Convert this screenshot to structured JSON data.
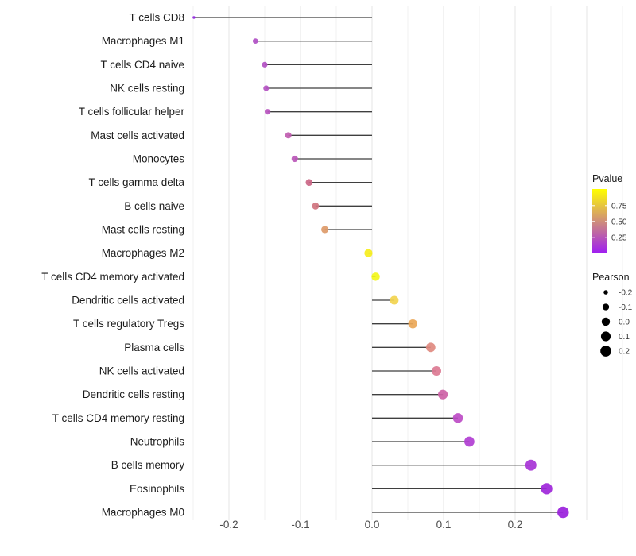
{
  "chart_data": {
    "type": "lollipop",
    "title": "",
    "xlabel": "",
    "ylabel": "",
    "grid": "on",
    "x_ticks": [
      "-0.2",
      "-0.1",
      "0.0",
      "0.1",
      "0.2"
    ],
    "x_tick_values": [
      -0.2,
      -0.1,
      0.0,
      0.1,
      0.2
    ],
    "xlim": [
      -0.253,
      0.358
    ],
    "categories": [
      "T cells CD8",
      "Macrophages M1",
      "T cells CD4 naive",
      "NK cells resting",
      "T cells follicular helper",
      "Mast cells activated",
      "Monocytes",
      "T cells gamma delta",
      "B cells naive",
      "Mast cells resting",
      "Macrophages M2",
      "T cells CD4 memory activated",
      "Dendritic cells activated",
      "T cells regulatory  Tregs",
      "Plasma cells",
      "NK cells activated",
      "Dendritic cells resting",
      "T cells CD4 memory resting",
      "Neutrophils",
      "B cells memory",
      "Eosinophils",
      "Macrophages M0"
    ],
    "series": [
      {
        "name": "Pearson",
        "values": [
          -0.249,
          -0.163,
          -0.15,
          -0.148,
          -0.146,
          -0.117,
          -0.108,
          -0.088,
          -0.079,
          -0.066,
          -0.005,
          0.005,
          0.031,
          0.057,
          0.082,
          0.09,
          0.099,
          0.12,
          0.136,
          0.222,
          0.244,
          0.267
        ]
      }
    ],
    "point_colors": [
      "#9327e0",
      "#b04fc4",
      "#b351c3",
      "#b452c2",
      "#b855bf",
      "#c05cb0",
      "#bb57b8",
      "#cb6685",
      "#d0747f",
      "#dd9a69",
      "#f6ee1c",
      "#f3f61a",
      "#f2d44f",
      "#eaa757",
      "#e08a80",
      "#dc7a92",
      "#cd62a6",
      "#bd4cc6",
      "#b13ed2",
      "#a733d6",
      "#9e26da",
      "#9a1fdc"
    ],
    "segment_color": "#3f3f3f",
    "gridline_major_color": "#e4e4e4",
    "gridline_minor_color": "#f1f1f1",
    "axis_text_color": "#4d4d4d",
    "category_text_color": "#1c1c1c",
    "legend_pvalue": {
      "title": "Pvalue",
      "tick_labels": [
        "0.75",
        "0.50",
        "0.25"
      ],
      "tick_fractions_from_top": [
        0.26,
        0.51,
        0.76
      ],
      "gradient_top": "#ffff00",
      "gradient_bottom": "#a020f0"
    },
    "legend_pearson": {
      "title": "Pearson",
      "labels": [
        "-0.2",
        "-0.1",
        "0.0",
        "0.1",
        "0.2"
      ],
      "values": [
        -0.2,
        -0.1,
        0.0,
        0.1,
        0.2
      ],
      "dot_color": "#000000"
    }
  }
}
